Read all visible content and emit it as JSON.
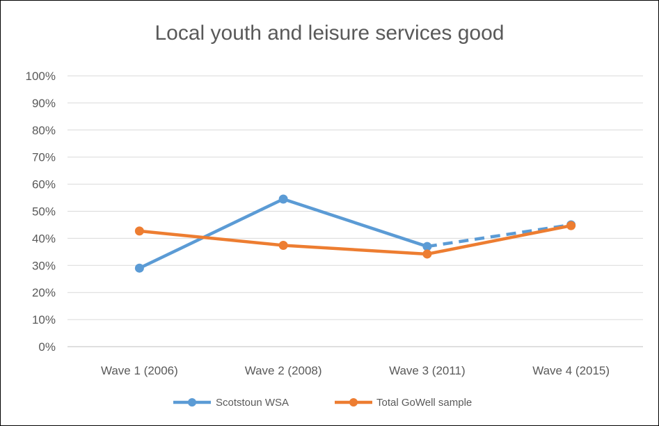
{
  "chart_data": {
    "type": "line",
    "title": "Local youth and leisure services good",
    "xlabel": "",
    "ylabel": "",
    "categories": [
      "Wave 1 (2006)",
      "Wave 2 (2008)",
      "Wave 3 (2011)",
      "Wave 4 (2015)"
    ],
    "y_tick_labels": [
      "0%",
      "10%",
      "20%",
      "30%",
      "40%",
      "50%",
      "60%",
      "70%",
      "80%",
      "90%",
      "100%"
    ],
    "ylim": [
      0,
      100
    ],
    "grid": true,
    "legend_position": "bottom",
    "series": [
      {
        "name": "Scotstoun WSA",
        "color": "#5B9BD5",
        "values": [
          29,
          54.5,
          37,
          45
        ],
        "dashed_from_index": 2
      },
      {
        "name": "Total GoWell sample",
        "color": "#ED7D31",
        "values": [
          42.7,
          37.4,
          34.2,
          44.7
        ],
        "dashed_from_index": null
      }
    ]
  }
}
